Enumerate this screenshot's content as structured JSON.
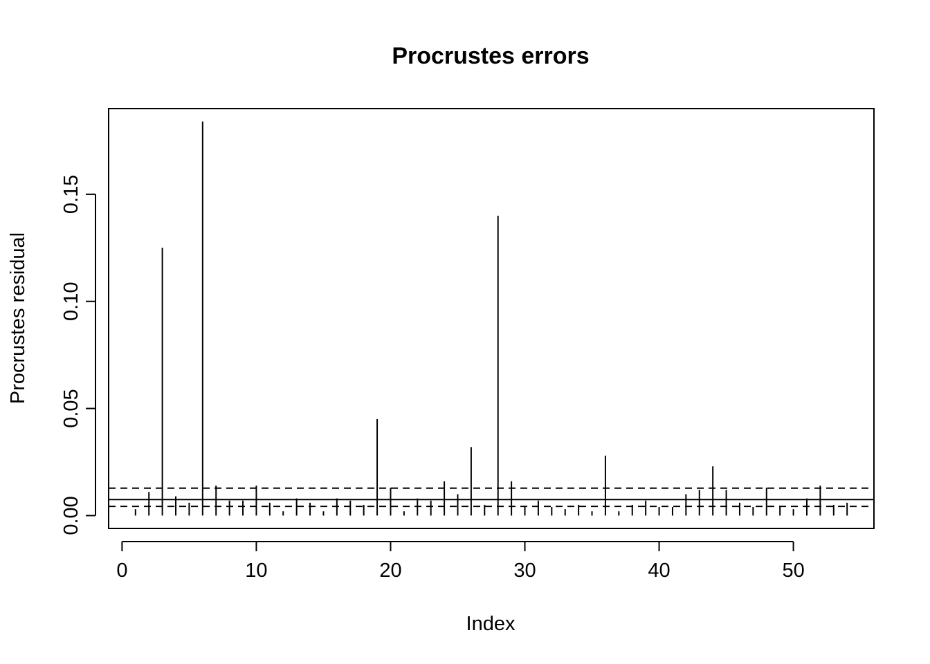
{
  "chart_data": {
    "type": "bar",
    "title": "Procrustes errors",
    "xlabel": "Index",
    "ylabel": "Procrustes residual",
    "xlim": [
      -1,
      56
    ],
    "ylim": [
      -0.006,
      0.19
    ],
    "xticks": [
      0,
      10,
      20,
      30,
      40,
      50
    ],
    "xtick_labels": [
      "0",
      "10",
      "20",
      "30",
      "40",
      "50"
    ],
    "yticks": [
      0,
      0.05,
      0.1,
      0.15
    ],
    "ytick_labels": [
      "0.00",
      "0.05",
      "0.10",
      "0.15"
    ],
    "x": [
      1,
      2,
      3,
      4,
      5,
      6,
      7,
      8,
      9,
      10,
      11,
      12,
      13,
      14,
      15,
      16,
      17,
      18,
      19,
      20,
      21,
      22,
      23,
      24,
      25,
      26,
      27,
      28,
      29,
      30,
      31,
      32,
      33,
      34,
      35,
      36,
      37,
      38,
      39,
      40,
      41,
      42,
      43,
      44,
      45,
      46,
      47,
      48,
      49,
      50,
      51,
      52,
      53,
      54
    ],
    "values": [
      0.003,
      0.011,
      0.125,
      0.009,
      0.006,
      0.184,
      0.014,
      0.007,
      0.007,
      0.014,
      0.006,
      0.002,
      0.008,
      0.006,
      0.002,
      0.008,
      0.007,
      0.005,
      0.045,
      0.013,
      0.002,
      0.008,
      0.007,
      0.016,
      0.01,
      0.032,
      0.005,
      0.14,
      0.016,
      0.004,
      0.007,
      0.004,
      0.003,
      0.005,
      0.002,
      0.028,
      0.002,
      0.005,
      0.007,
      0.004,
      0.004,
      0.01,
      0.012,
      0.023,
      0.012,
      0.006,
      0.004,
      0.013,
      0.004,
      0.003,
      0.008,
      0.014,
      0.005,
      0.006
    ],
    "reference_lines": [
      {
        "value": 0.0075,
        "style": "solid"
      },
      {
        "value": 0.0043,
        "style": "dashed"
      },
      {
        "value": 0.0128,
        "style": "dashed"
      }
    ],
    "grid": false,
    "legend": "none"
  }
}
